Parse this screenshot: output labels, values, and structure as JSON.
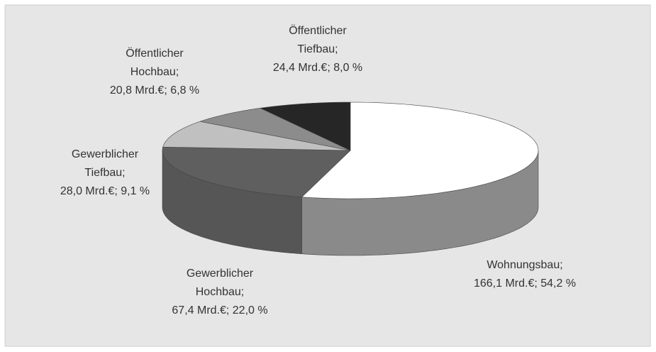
{
  "chart_data": {
    "type": "pie3d",
    "categories": [
      "Wohnungsbau;",
      "Gewerblicher Hochbau;",
      "Gewerblicher Tiefbau;",
      "Öffentlicher Hochbau;",
      "Öffentlicher Tiefbau;"
    ],
    "values": [
      166.1,
      67.4,
      28.0,
      20.8,
      24.4
    ],
    "percentages": [
      54.2,
      22.0,
      9.1,
      6.8,
      8.0
    ],
    "value_labels": [
      "166,1 Mrd.€; 54,2 %",
      "67,4 Mrd.€; 22,0 %",
      "28,0 Mrd.€; 9,1 %",
      "20,8 Mrd.€; 6,8 %",
      "24,4 Mrd.€; 8,0 %"
    ],
    "colors": [
      "#ffffff",
      "#5f5f5f",
      "#c0c0c0",
      "#8c8c8c",
      "#262626"
    ]
  }
}
